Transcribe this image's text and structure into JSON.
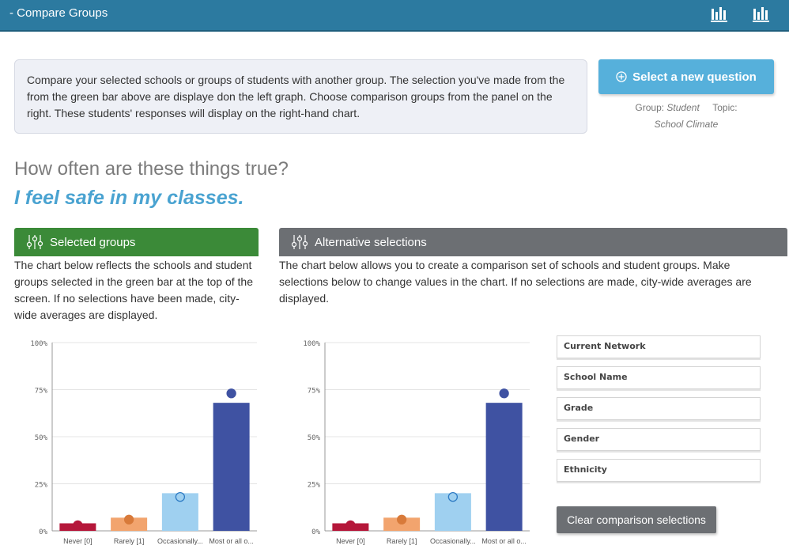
{
  "header": {
    "title": "-  Compare Groups",
    "icons": [
      "bar-chart-icon",
      "bar-chart-icon"
    ]
  },
  "info_text": "Compare your selected schools or groups of students with another group. The selection you've made from the from the green bar above are displaye don the left graph. Choose comparison groups from the panel on the right. These students' responses will display on the right-hand chart.",
  "select_question_label": "Select a new question",
  "meta": {
    "group_label": "Group:",
    "group_value": "Student",
    "topic_label": "Topic:",
    "topic_value": "School Climate"
  },
  "question": "How often are these things true?",
  "statement": "I feel safe in my classes.",
  "selected_panel": {
    "title": "Selected groups",
    "description": "The chart below reflects the schools and student groups selected in the green bar at the top of the screen. If no selections have been made, city-wide averages are displayed."
  },
  "alternative_panel": {
    "title": "Alternative selections",
    "description": "The chart below allows you to create a comparison set of schools and student groups. Make selections below to change values in the chart. If no selections are made, city-wide averages are displayed."
  },
  "filters": [
    "Current Network",
    "School Name",
    "Grade",
    "Gender",
    "Ethnicity"
  ],
  "clear_label": "Clear comparison selections",
  "colors": {
    "never": "#b5173a",
    "rarely": "#f2a46e",
    "occasionally": "#9fd0f0",
    "most": "#3f52a2",
    "header_blue": "#2c7aa0",
    "green": "#3b8a38",
    "grey": "#6c6f73"
  },
  "chart_data": [
    {
      "type": "bar",
      "categories": [
        "Never [0]",
        "Rarely [1]",
        "Occasionally...",
        "Most or all o..."
      ],
      "values": [
        4,
        7,
        20,
        68
      ],
      "markers": [
        3,
        6,
        18,
        73
      ],
      "ylim": [
        0,
        100
      ],
      "yticks": [
        "0%",
        "25%",
        "50%",
        "75%",
        "100%"
      ]
    },
    {
      "type": "bar",
      "categories": [
        "Never [0]",
        "Rarely [1]",
        "Occasionally...",
        "Most or all o..."
      ],
      "values": [
        4,
        7,
        20,
        68
      ],
      "markers": [
        3,
        6,
        18,
        73
      ],
      "ylim": [
        0,
        100
      ],
      "yticks": [
        "0%",
        "25%",
        "50%",
        "75%",
        "100%"
      ]
    }
  ]
}
